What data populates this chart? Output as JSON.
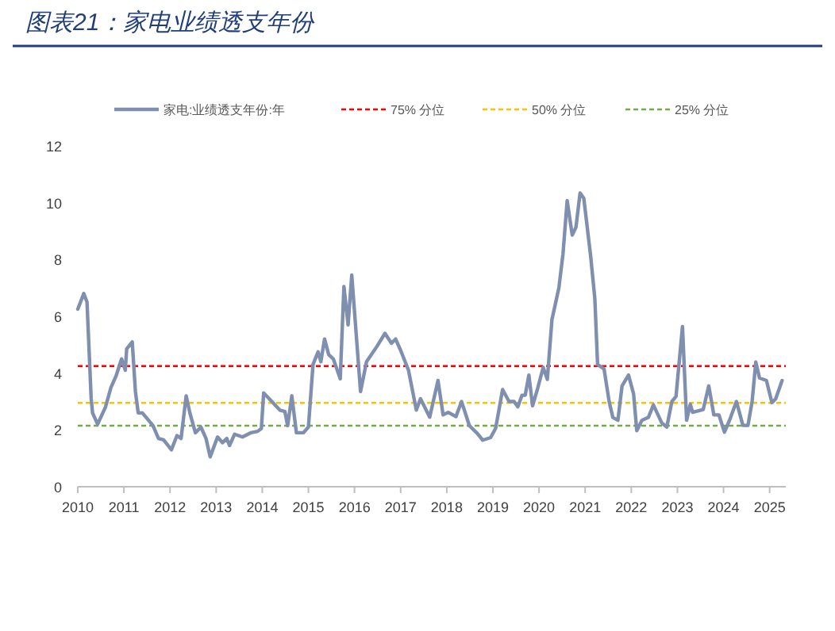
{
  "chart_data": {
    "type": "line",
    "title": "图表21：家电业绩透支年份",
    "legend": "top",
    "marker": "none",
    "line_style": "solid",
    "grid": false,
    "xlim": [
      2010,
      2025.35
    ],
    "xticks": [
      2010,
      2011,
      2012,
      2013,
      2014,
      2015,
      2016,
      2017,
      2018,
      2019,
      2020,
      2021,
      2022,
      2023,
      2024,
      2025
    ],
    "ylim": [
      0,
      12
    ],
    "yticks": [
      0,
      2,
      4,
      6,
      8,
      10,
      12
    ],
    "ref_lines": [
      {
        "axis": "y",
        "value": 4.25,
        "label": "75% 分位",
        "color": "#ff0000",
        "line_style": "dashed"
      },
      {
        "axis": "y",
        "value": 2.95,
        "label": "50% 分位",
        "color": "#ffc000",
        "line_style": "dashed"
      },
      {
        "axis": "y",
        "value": 2.15,
        "label": "25% 分位",
        "color": "#70ad47",
        "line_style": "dashed"
      }
    ],
    "series": [
      {
        "name": "家电:业绩透支年份:年",
        "color": "#7f8fb0",
        "x": [
          2010.0,
          2010.13,
          2010.2,
          2010.29,
          2010.32,
          2010.43,
          2010.6,
          2010.72,
          2010.83,
          2010.95,
          2011.03,
          2011.06,
          2011.18,
          2011.25,
          2011.31,
          2011.4,
          2011.63,
          2011.75,
          2011.86,
          2012.03,
          2012.15,
          2012.24,
          2012.35,
          2012.43,
          2012.55,
          2012.67,
          2012.78,
          2012.87,
          2013.03,
          2013.14,
          2013.23,
          2013.29,
          2013.4,
          2013.57,
          2013.75,
          2013.9,
          2013.98,
          2014.03,
          2014.15,
          2014.38,
          2014.49,
          2014.55,
          2014.64,
          2014.74,
          2014.89,
          2015.0,
          2015.1,
          2015.21,
          2015.27,
          2015.35,
          2015.44,
          2015.54,
          2015.69,
          2015.77,
          2015.86,
          2015.94,
          2016.13,
          2016.26,
          2016.49,
          2016.66,
          2016.8,
          2016.89,
          2017.0,
          2017.17,
          2017.34,
          2017.43,
          2017.63,
          2017.81,
          2017.92,
          2018.03,
          2018.2,
          2018.32,
          2018.49,
          2018.66,
          2018.78,
          2018.95,
          2019.06,
          2019.21,
          2019.35,
          2019.46,
          2019.54,
          2019.63,
          2019.7,
          2019.78,
          2019.86,
          2019.97,
          2020.09,
          2020.18,
          2020.28,
          2020.43,
          2020.52,
          2020.61,
          2020.72,
          2020.8,
          2020.89,
          2020.97,
          2021.12,
          2021.21,
          2021.27,
          2021.41,
          2021.52,
          2021.6,
          2021.71,
          2021.8,
          2021.94,
          2022.05,
          2022.12,
          2022.23,
          2022.37,
          2022.48,
          2022.66,
          2022.77,
          2022.88,
          2022.97,
          2023.11,
          2023.2,
          2023.28,
          2023.33,
          2023.56,
          2023.68,
          2023.79,
          2023.9,
          2024.02,
          2024.13,
          2024.28,
          2024.42,
          2024.53,
          2024.62,
          2024.7,
          2024.78,
          2024.93,
          2025.05,
          2025.13,
          2025.27
        ],
        "values": [
          6.25,
          6.8,
          6.5,
          3.1,
          2.6,
          2.2,
          2.8,
          3.5,
          3.9,
          4.5,
          4.1,
          4.85,
          5.1,
          3.35,
          2.6,
          2.6,
          2.15,
          1.7,
          1.65,
          1.3,
          1.8,
          1.7,
          3.2,
          2.6,
          1.9,
          2.1,
          1.7,
          1.05,
          1.75,
          1.55,
          1.7,
          1.45,
          1.85,
          1.75,
          1.9,
          1.95,
          2.05,
          3.3,
          3.1,
          2.7,
          2.65,
          2.15,
          3.2,
          1.9,
          1.9,
          2.1,
          4.3,
          4.75,
          4.4,
          5.2,
          4.65,
          4.5,
          3.8,
          7.05,
          5.7,
          7.45,
          3.35,
          4.4,
          4.95,
          5.4,
          5.05,
          5.2,
          4.8,
          4.1,
          2.7,
          3.1,
          2.45,
          3.74,
          2.53,
          2.62,
          2.47,
          3.0,
          2.15,
          1.88,
          1.64,
          1.73,
          2.06,
          3.42,
          3.0,
          3.0,
          2.81,
          3.22,
          3.22,
          3.93,
          2.85,
          3.46,
          4.2,
          3.78,
          5.88,
          7.0,
          8.2,
          10.07,
          8.86,
          9.13,
          10.34,
          10.16,
          8.11,
          6.62,
          4.3,
          4.15,
          3.0,
          2.44,
          2.34,
          3.55,
          3.93,
          3.27,
          1.97,
          2.34,
          2.44,
          2.88,
          2.25,
          2.1,
          3.0,
          3.18,
          5.64,
          2.34,
          2.9,
          2.62,
          2.72,
          3.55,
          2.53,
          2.53,
          1.92,
          2.34,
          3.0,
          2.16,
          2.16,
          3.0,
          4.39,
          3.83,
          3.74,
          2.96,
          3.09,
          3.74
        ]
      }
    ]
  }
}
